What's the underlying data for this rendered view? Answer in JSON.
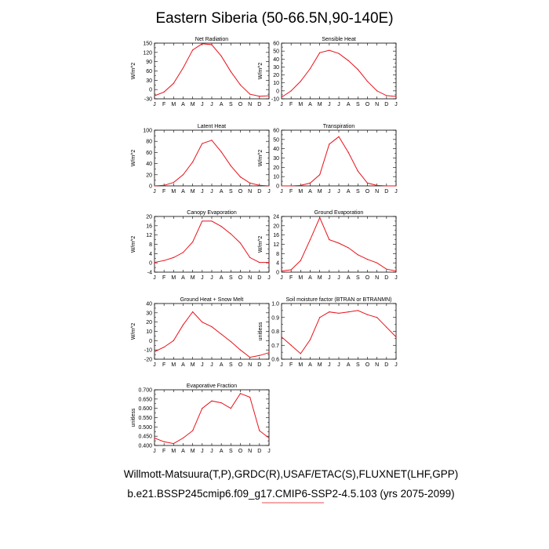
{
  "title": "Eastern Siberia (50-66.5N,90-140E)",
  "footer": {
    "line1": "Willmott-Matsuura(T,P),GRDC(R),USAF/ETAC(S),FLUXNET(LHF,GPP)",
    "line2": "b.e21.BSSP245cmip6.f09_g17.CMIP6-SSP2-4.5.103 (yrs 2075-2099)"
  },
  "colors": {
    "series": "#e8121a",
    "axis": "#000000",
    "accent": "#e8121a"
  },
  "chart_data": [
    {
      "type": "line",
      "title": "Net Radiation",
      "ylabel": "W/m^2",
      "categories": [
        "J",
        "F",
        "M",
        "A",
        "M",
        "J",
        "J",
        "A",
        "S",
        "O",
        "N",
        "D",
        "J"
      ],
      "ylim": [
        -30,
        150
      ],
      "yticks": [
        "150",
        "120",
        "90",
        "60",
        "30",
        "0",
        "-30"
      ],
      "values": [
        -20,
        -8,
        20,
        70,
        128,
        148,
        145,
        108,
        58,
        15,
        -15,
        -22,
        -20
      ]
    },
    {
      "type": "line",
      "title": "Sensible Heat",
      "ylabel": "W/m^2",
      "categories": [
        "J",
        "F",
        "M",
        "A",
        "M",
        "J",
        "J",
        "A",
        "S",
        "O",
        "N",
        "D",
        "J"
      ],
      "ylim": [
        -10,
        60
      ],
      "yticks": [
        "60",
        "50",
        "40",
        "30",
        "20",
        "10",
        "0",
        "-10"
      ],
      "values": [
        -8,
        0,
        12,
        28,
        48,
        51,
        47,
        38,
        27,
        12,
        0,
        -6,
        -7
      ]
    },
    {
      "type": "line",
      "title": "Latent Heat",
      "ylabel": "W/m^2",
      "categories": [
        "J",
        "F",
        "M",
        "A",
        "M",
        "J",
        "J",
        "A",
        "S",
        "O",
        "N",
        "D",
        "J"
      ],
      "ylim": [
        0,
        100
      ],
      "yticks": [
        "100",
        "80",
        "60",
        "40",
        "20",
        "0"
      ],
      "values": [
        0,
        1,
        6,
        20,
        43,
        76,
        82,
        61,
        36,
        16,
        5,
        1,
        0
      ]
    },
    {
      "type": "line",
      "title": "Transpiration",
      "ylabel": "W/m^2",
      "categories": [
        "J",
        "F",
        "M",
        "A",
        "M",
        "J",
        "J",
        "A",
        "S",
        "O",
        "N",
        "D",
        "J"
      ],
      "ylim": [
        0,
        60
      ],
      "yticks": [
        "60",
        "50",
        "40",
        "30",
        "20",
        "10",
        "0"
      ],
      "values": [
        0,
        0,
        0.5,
        3,
        12,
        45,
        53,
        36,
        16,
        3,
        0.5,
        0,
        0
      ]
    },
    {
      "type": "line",
      "title": "Canopy Evaporation",
      "ylabel": "W/m^2",
      "categories": [
        "J",
        "F",
        "M",
        "A",
        "M",
        "J",
        "J",
        "A",
        "S",
        "O",
        "N",
        "D",
        "J"
      ],
      "ylim": [
        -4,
        20
      ],
      "yticks": [
        "20",
        "16",
        "12",
        "8",
        "4",
        "0",
        "-4"
      ],
      "values": [
        0.2,
        1.0,
        2.3,
        4.5,
        9,
        18,
        18,
        15.7,
        12.5,
        8.5,
        2.3,
        0.2,
        0.2
      ]
    },
    {
      "type": "line",
      "title": "Ground Evaporation",
      "ylabel": "W/m^2",
      "categories": [
        "J",
        "F",
        "M",
        "A",
        "M",
        "J",
        "J",
        "A",
        "S",
        "O",
        "N",
        "D",
        "J"
      ],
      "ylim": [
        0,
        24
      ],
      "yticks": [
        "24",
        "20",
        "16",
        "12",
        "8",
        "4",
        "0"
      ],
      "values": [
        0.5,
        1.0,
        5,
        14,
        23.5,
        14,
        12.5,
        10.5,
        7.5,
        5.5,
        4,
        1.3,
        0.5
      ]
    },
    {
      "type": "line",
      "title": "Ground Heat + Snow Melt",
      "ylabel": "W/m^2",
      "categories": [
        "J",
        "F",
        "M",
        "A",
        "M",
        "J",
        "J",
        "A",
        "S",
        "O",
        "N",
        "D",
        "J"
      ],
      "ylim": [
        -20,
        40
      ],
      "yticks": [
        "40",
        "30",
        "20",
        "10",
        "0",
        "-10",
        "-20"
      ],
      "values": [
        -12,
        -7,
        0,
        17,
        31,
        20,
        15,
        7,
        -1,
        -10,
        -18,
        -16,
        -13
      ]
    },
    {
      "type": "line",
      "title": "Soil moisture factor (BTRAN or BTRANMN)",
      "ylabel": "unitless",
      "categories": [
        "J",
        "F",
        "M",
        "A",
        "M",
        "J",
        "J",
        "A",
        "S",
        "O",
        "N",
        "D",
        "J"
      ],
      "ylim": [
        0.6,
        1.0
      ],
      "yticks": [
        "1.0",
        "0.9",
        "0.8",
        "0.7",
        "0.6"
      ],
      "values": [
        0.76,
        0.7,
        0.64,
        0.74,
        0.9,
        0.94,
        0.93,
        0.94,
        0.95,
        0.92,
        0.9,
        0.83,
        0.76
      ]
    },
    {
      "type": "line",
      "title": "Evaporative Fraction",
      "ylabel": "unitless",
      "categories": [
        "J",
        "F",
        "M",
        "A",
        "M",
        "J",
        "J",
        "A",
        "S",
        "O",
        "N",
        "D",
        "J"
      ],
      "ylim": [
        0.4,
        0.7
      ],
      "yticks": [
        "0.700",
        "0.650",
        "0.600",
        "0.550",
        "0.500",
        "0.450",
        "0.400"
      ],
      "values": [
        0.44,
        0.42,
        0.41,
        0.44,
        0.48,
        0.6,
        0.64,
        0.63,
        0.6,
        0.68,
        0.66,
        0.48,
        0.44
      ]
    }
  ]
}
